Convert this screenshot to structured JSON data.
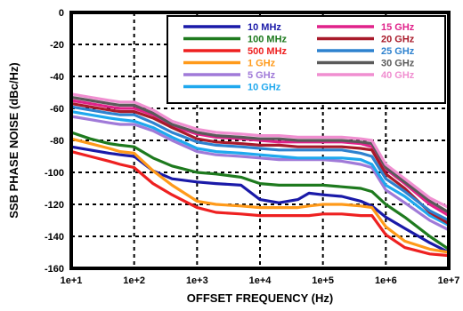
{
  "chart_data": {
    "type": "line",
    "xlabel": "OFFSET FREQUENCY (Hz)",
    "ylabel": "SSB PHASE NOISE (dBc/Hz)",
    "x_scale": "log",
    "xlim": [
      10,
      10000000
    ],
    "ylim": [
      -160,
      0
    ],
    "x_ticks": [
      10,
      100,
      1000,
      10000,
      100000,
      1000000,
      10000000
    ],
    "x_tick_labels": [
      "1e+1",
      "1e+2",
      "1e+3",
      "1e+4",
      "1e+5",
      "1e+6",
      "1e+7"
    ],
    "y_ticks": [
      0,
      -20,
      -40,
      -60,
      -80,
      -100,
      -120,
      -140,
      -160
    ],
    "y_tick_labels": [
      "0",
      "-20",
      "-40",
      "-60",
      "-80",
      "-100",
      "-120",
      "-140",
      "-160"
    ],
    "grid": true,
    "legend_position": "top-right",
    "series": [
      {
        "name": "10 MHz",
        "color": "#1a1aa8",
        "x": [
          10,
          20,
          40,
          60,
          100,
          200,
          400,
          1000,
          2000,
          5000,
          10000,
          20000,
          40000,
          60000,
          100000,
          200000,
          400000,
          600000,
          1000000,
          2000000,
          5000000,
          10000000
        ],
        "y": [
          -84,
          -86,
          -88,
          -89,
          -90,
          -99,
          -104,
          -106,
          -107,
          -108,
          -117,
          -119,
          -117,
          -113,
          -114,
          -115,
          -118,
          -121,
          -128,
          -135,
          -144,
          -150
        ]
      },
      {
        "name": "100 MHz",
        "color": "#1e7a1e",
        "x": [
          10,
          20,
          40,
          60,
          100,
          200,
          400,
          1000,
          2000,
          5000,
          10000,
          20000,
          40000,
          60000,
          100000,
          200000,
          400000,
          600000,
          1000000,
          2000000,
          5000000,
          10000000
        ],
        "y": [
          -75,
          -79,
          -82,
          -83,
          -84,
          -91,
          -96,
          -100,
          -101,
          -103,
          -107,
          -108,
          -108,
          -108,
          -108,
          -109,
          -110,
          -112,
          -120,
          -128,
          -140,
          -148
        ]
      },
      {
        "name": "500 MHz",
        "color": "#ee2020",
        "x": [
          10,
          20,
          40,
          60,
          100,
          200,
          400,
          1000,
          2000,
          5000,
          10000,
          20000,
          40000,
          60000,
          100000,
          200000,
          400000,
          600000,
          1000000,
          2000000,
          5000000,
          10000000
        ],
        "y": [
          -87,
          -90,
          -93,
          -95,
          -97,
          -107,
          -114,
          -122,
          -125,
          -126,
          -127,
          -127,
          -127,
          -127,
          -126,
          -126,
          -127,
          -127,
          -139,
          -147,
          -151,
          -152
        ]
      },
      {
        "name": "1 GHz",
        "color": "#ff9a1a",
        "x": [
          10,
          20,
          40,
          60,
          100,
          200,
          400,
          1000,
          2000,
          5000,
          10000,
          20000,
          40000,
          60000,
          100000,
          200000,
          400000,
          600000,
          1000000,
          2000000,
          5000000,
          10000000
        ],
        "y": [
          -79,
          -82,
          -85,
          -87,
          -88,
          -99,
          -108,
          -118,
          -120,
          -121,
          -122,
          -122,
          -122,
          -121,
          -120,
          -120,
          -121,
          -122,
          -134,
          -143,
          -148,
          -150
        ]
      },
      {
        "name": "5 GHz",
        "color": "#a07ad8",
        "x": [
          10,
          20,
          40,
          60,
          100,
          200,
          400,
          1000,
          2000,
          5000,
          10000,
          20000,
          40000,
          60000,
          100000,
          200000,
          400000,
          600000,
          1000000,
          2000000,
          5000000,
          10000000
        ],
        "y": [
          -65,
          -67,
          -69,
          -70,
          -70,
          -74,
          -80,
          -87,
          -89,
          -90,
          -91,
          -92,
          -92,
          -92,
          -92,
          -93,
          -95,
          -97,
          -111,
          -119,
          -130,
          -136
        ]
      },
      {
        "name": "10 GHz",
        "color": "#1fa8ee",
        "x": [
          10,
          20,
          40,
          60,
          100,
          200,
          400,
          1000,
          2000,
          5000,
          10000,
          20000,
          40000,
          60000,
          100000,
          200000,
          400000,
          600000,
          1000000,
          2000000,
          5000000,
          10000000
        ],
        "y": [
          -62,
          -64,
          -66,
          -67,
          -68,
          -72,
          -78,
          -85,
          -87,
          -88,
          -89,
          -90,
          -91,
          -91,
          -91,
          -91,
          -92,
          -95,
          -108,
          -115,
          -127,
          -133
        ]
      },
      {
        "name": "15 GHz",
        "color": "#e0228a",
        "x": [
          10,
          20,
          40,
          60,
          100,
          200,
          400,
          1000,
          2000,
          5000,
          10000,
          20000,
          40000,
          60000,
          100000,
          200000,
          400000,
          600000,
          1000000,
          2000000,
          5000000,
          10000000
        ],
        "y": [
          -55,
          -57,
          -59,
          -60,
          -60,
          -64,
          -71,
          -76,
          -78,
          -79,
          -80,
          -81,
          -81,
          -81,
          -81,
          -81,
          -82,
          -84,
          -98,
          -107,
          -120,
          -127
        ]
      },
      {
        "name": "20 GHz",
        "color": "#a81a2a",
        "x": [
          10,
          20,
          40,
          60,
          100,
          200,
          400,
          1000,
          2000,
          5000,
          10000,
          20000,
          40000,
          60000,
          100000,
          200000,
          400000,
          600000,
          1000000,
          2000000,
          5000000,
          10000000
        ],
        "y": [
          -57,
          -59,
          -61,
          -62,
          -62,
          -66,
          -72,
          -79,
          -81,
          -82,
          -83,
          -83,
          -84,
          -84,
          -84,
          -84,
          -85,
          -86,
          -101,
          -110,
          -125,
          -132
        ]
      },
      {
        "name": "25 GHz",
        "color": "#2e82cf",
        "x": [
          10,
          20,
          40,
          60,
          100,
          200,
          400,
          1000,
          2000,
          5000,
          10000,
          20000,
          40000,
          60000,
          100000,
          200000,
          400000,
          600000,
          1000000,
          2000000,
          5000000,
          10000000
        ],
        "y": [
          -59,
          -61,
          -63,
          -64,
          -64,
          -69,
          -75,
          -81,
          -83,
          -84,
          -85,
          -86,
          -86,
          -86,
          -86,
          -86,
          -88,
          -90,
          -104,
          -112,
          -124,
          -130
        ]
      },
      {
        "name": "30 GHz",
        "color": "#5a5a5a",
        "x": [
          10,
          20,
          40,
          60,
          100,
          200,
          400,
          1000,
          2000,
          5000,
          10000,
          20000,
          40000,
          60000,
          100000,
          200000,
          400000,
          600000,
          1000000,
          2000000,
          5000000,
          10000000
        ],
        "y": [
          -53,
          -55,
          -57,
          -58,
          -58,
          -63,
          -70,
          -75,
          -77,
          -78,
          -79,
          -79,
          -80,
          -80,
          -80,
          -80,
          -81,
          -82,
          -97,
          -106,
          -118,
          -125
        ]
      },
      {
        "name": "40 GHz",
        "color": "#f08ed0",
        "x": [
          10,
          20,
          40,
          60,
          100,
          200,
          400,
          1000,
          2000,
          5000,
          10000,
          20000,
          40000,
          60000,
          100000,
          200000,
          400000,
          600000,
          1000000,
          2000000,
          5000000,
          10000000
        ],
        "y": [
          -51,
          -53,
          -55,
          -56,
          -56,
          -61,
          -68,
          -73,
          -75,
          -76,
          -77,
          -77,
          -78,
          -78,
          -78,
          -78,
          -79,
          -80,
          -95,
          -104,
          -116,
          -122
        ]
      }
    ]
  }
}
